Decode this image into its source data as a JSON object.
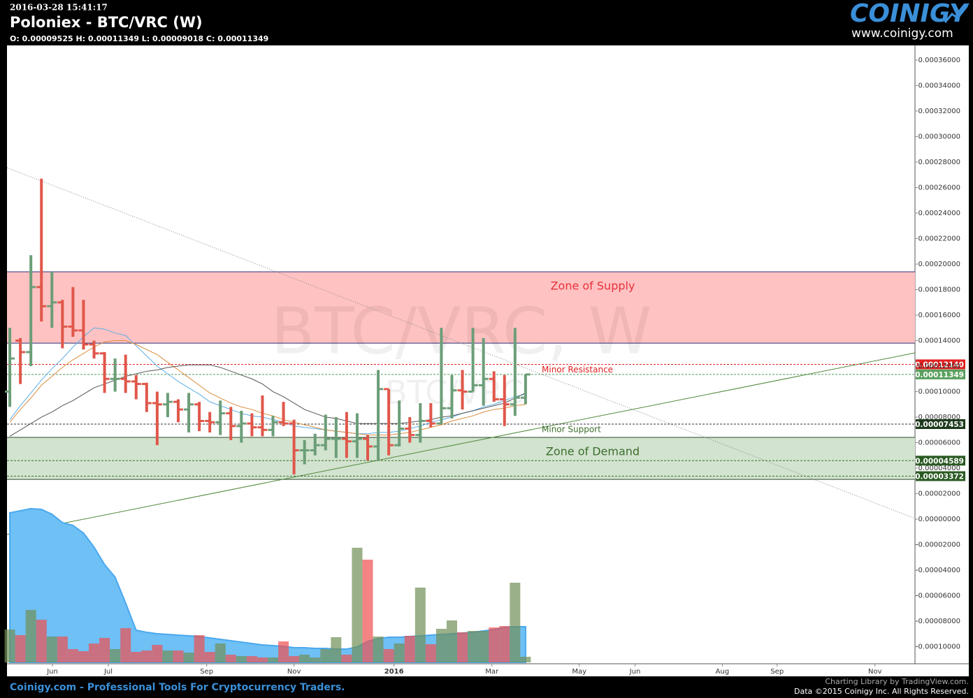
{
  "header": {
    "timestamp": "2016-03-28 15:41:17",
    "title": "Poloniex - BTC/VRC (W)",
    "ohlc_line": "O: 0.00009525 H: 0.00011349 L: 0.00009018 C: 0.00011349",
    "logo": "COINIGY",
    "logo_url": "www.coinigy.com"
  },
  "footer": {
    "tagline": "Coinigy.com - Professional Tools For Cryptocurrency Traders.",
    "credit": "Charting Library by TradingView.com.",
    "copyright": "Data ©2015 Coinigy Inc. All Rights Reserved."
  },
  "chart_data": {
    "type": "ohlc",
    "watermark": [
      "BTC/VRC, W",
      "BTC/VRC"
    ],
    "ylim": [
      -0.0001134,
      0.0003715
    ],
    "yticks": [
      {
        "value": 0.00036,
        "label": "0.00036000"
      },
      {
        "value": 0.00034,
        "label": "0.00034000"
      },
      {
        "value": 0.00032,
        "label": "0.00032000"
      },
      {
        "value": 0.0003,
        "label": "0.00030000"
      },
      {
        "value": 0.00028,
        "label": "0.00028000"
      },
      {
        "value": 0.00026,
        "label": "0.00026000"
      },
      {
        "value": 0.00024,
        "label": "0.00024000"
      },
      {
        "value": 0.00022,
        "label": "0.00022000"
      },
      {
        "value": 0.0002,
        "label": "0.00020000"
      },
      {
        "value": 0.00018,
        "label": "0.00018000"
      },
      {
        "value": 0.00016,
        "label": "0.00016000"
      },
      {
        "value": 0.00014,
        "label": "0.00014000"
      },
      {
        "value": 0.00012,
        "label": "0.00012000"
      },
      {
        "value": 0.0001,
        "label": "0.00010000"
      },
      {
        "value": 8e-05,
        "label": "0.00008000"
      },
      {
        "value": 6e-05,
        "label": "0.00006000"
      },
      {
        "value": 4e-05,
        "label": "0.00004000"
      },
      {
        "value": 2e-05,
        "label": "0.00002000"
      },
      {
        "value": 0,
        "label": "0.00000000"
      },
      {
        "value": -2e-05,
        "label": "-0.00002000"
      },
      {
        "value": -4e-05,
        "label": "-0.00004000"
      },
      {
        "value": -6e-05,
        "label": "-0.00006000"
      },
      {
        "value": -8e-05,
        "label": "-0.00008000"
      },
      {
        "value": -0.0001,
        "label": "-0.00010000"
      }
    ],
    "xlim": [
      -0.27,
      86.0
    ],
    "xticks": [
      {
        "value": 4.05,
        "label": "Jun"
      },
      {
        "value": 9.36,
        "label": "Jul"
      },
      {
        "value": 18.7,
        "label": "Sep"
      },
      {
        "value": 27.0,
        "label": "Nov"
      },
      {
        "value": 36.5,
        "label": "2016"
      },
      {
        "value": 45.8,
        "label": "Mar"
      },
      {
        "value": 54.1,
        "label": "May"
      },
      {
        "value": 59.4,
        "label": "Jun"
      },
      {
        "value": 67.7,
        "label": "Aug"
      },
      {
        "value": 72.9,
        "label": "Sep"
      },
      {
        "value": 82.2,
        "label": "Nov"
      }
    ],
    "up_color": "#6b9e78",
    "down_color": "#e0574a",
    "ohlc": {
      "open": [
        0.0001,
        0.00014,
        0.000131,
        0.000182,
        0.000167,
        0.00017,
        0.000151,
        0.000148,
        0.000137,
        0.00013,
        0.00011,
        0.00011,
        0.000108,
        0.000106,
        9.1e-05,
        9e-05,
        9.2e-05,
        8.6e-05,
        9e-05,
        7.7e-05,
        7.6e-05,
        8.3e-05,
        7.3e-05,
        7.5e-05,
        7.2e-05,
        7e-05,
        7.6e-05,
        7.5e-05,
        5.4e-05,
        5.4e-05,
        5.8e-05,
        6.3e-05,
        6.3e-05,
        6.1e-05,
        6.3e-05,
        5.7e-05,
        0.000102,
        5.8e-05,
        7.1e-05,
        6.6e-05,
        7.7e-05,
        7.5e-05,
        8.7e-05,
        0.000101,
        0.0001,
        0.000105,
        0.00011,
        9.4e-05,
        9e-05,
        9.525e-05
      ],
      "high": [
        0.00015,
        0.000142,
        0.000207,
        0.000267,
        0.000194,
        0.000172,
        0.000182,
        0.000172,
        0.00014,
        0.000131,
        0.000126,
        0.000129,
        0.000113,
        0.000107,
        0.0001,
        9.9e-05,
        9.4e-05,
        9.9e-05,
        9.2e-05,
        8.4e-05,
        9.3e-05,
        8.8e-05,
        8.5e-05,
        8.3e-05,
        9.7e-05,
        8.1e-05,
        9.2e-05,
        7.8e-05,
        6.2e-05,
        6.7e-05,
        8.2e-05,
        8e-05,
        8.4e-05,
        8.3e-05,
        6.6e-05,
        0.000117,
        0.000102,
        9.3e-05,
        8e-05,
        9.1e-05,
        9.1e-05,
        0.00015,
        0.000113,
        0.000117,
        0.00015,
        0.000142,
        0.000116,
        0.000113,
        0.00015,
        0.00011349
      ],
      "low": [
        8.8e-05,
        0.000106,
        0.00012,
        0.000155,
        0.00015,
        0.000134,
        0.000143,
        0.000133,
        0.000126,
        9.9e-05,
        0.0001,
        9.9e-05,
        9.4e-05,
        8.4e-05,
        5.8e-05,
        8e-05,
        7.6e-05,
        6.8e-05,
        6.9e-05,
        6.8e-05,
        6.6e-05,
        6.2e-05,
        6e-05,
        6.5e-05,
        6.5e-05,
        6.5e-05,
        7.3e-05,
        3.5e-05,
        4.3e-05,
        5e-05,
        5.4e-05,
        4.8e-05,
        4.8e-05,
        4.8e-05,
        4.6e-05,
        4.6e-05,
        5e-05,
        5.7e-05,
        6e-05,
        6e-05,
        7.2e-05,
        7.5e-05,
        7.9e-05,
        8.6e-05,
        0.0001,
        8.9e-05,
        9.2e-05,
        7.3e-05,
        8.1e-05,
        9.018e-05
      ],
      "close": [
        0.000126,
        0.000131,
        0.000182,
        0.000167,
        0.00017,
        0.000151,
        0.000148,
        0.000137,
        0.00013,
        0.00011,
        0.00011,
        0.000108,
        0.000106,
        9.1e-05,
        9e-05,
        9.2e-05,
        8.6e-05,
        9e-05,
        7.7e-05,
        7.6e-05,
        8.3e-05,
        7.3e-05,
        7.5e-05,
        7.2e-05,
        7e-05,
        7.6e-05,
        7.5e-05,
        5.4e-05,
        5.4e-05,
        5.8e-05,
        6.3e-05,
        6.3e-05,
        6.1e-05,
        6.3e-05,
        5.7e-05,
        0.000102,
        5.8e-05,
        7.1e-05,
        6.6e-05,
        7.7e-05,
        7.5e-05,
        8.7e-05,
        0.000101,
        0.0001,
        0.000105,
        0.00011,
        9.4e-05,
        9e-05,
        9.525e-05,
        0.00011349
      ]
    },
    "moving_averages": [
      {
        "color": "#5aaee8",
        "values": [
          7.8e-05,
          8.9e-05,
          9.9e-05,
          0.000109,
          0.000118,
          0.000126,
          0.000135,
          0.000143,
          0.00015,
          0.000149,
          0.000146,
          0.000144,
          0.000136,
          0.000128,
          0.00012,
          0.000114,
          0.000108,
          0.000103,
          9.8e-05,
          9.2e-05,
          8.9e-05,
          8.6e-05,
          8.3e-05,
          8.1e-05,
          8e-05,
          7.8e-05,
          7.6e-05,
          7.3e-05,
          7.2e-05,
          7.1e-05,
          7e-05,
          6.9e-05,
          6.8e-05,
          6.7e-05,
          6.7e-05,
          6.8e-05,
          6.8e-05,
          6.9e-05,
          7.1e-05,
          7.3e-05,
          7.6e-05,
          7.8e-05,
          8e-05,
          8.3e-05,
          8.5e-05,
          8.8e-05,
          9e-05,
          9.3e-05,
          9.6e-05,
          9.8e-05
        ]
      },
      {
        "color": "#d98c3c",
        "values": [
          7.6e-05,
          8.6e-05,
          9.5e-05,
          0.000105,
          0.000112,
          0.000119,
          0.000125,
          0.00013,
          0.000135,
          0.000139,
          0.00014,
          0.00014,
          0.000137,
          0.000133,
          0.000129,
          0.000123,
          0.000117,
          0.000111,
          0.000105,
          9.9e-05,
          9.5e-05,
          9.1e-05,
          8.8e-05,
          8.6e-05,
          8.3e-05,
          8.1e-05,
          7.8e-05,
          7.6e-05,
          7.4e-05,
          7.2e-05,
          7e-05,
          6.9e-05,
          6.8e-05,
          6.7e-05,
          6.6e-05,
          6.6e-05,
          6.6e-05,
          6.7e-05,
          6.8e-05,
          7e-05,
          7.2e-05,
          7.4e-05,
          7.7e-05,
          7.9e-05,
          8.1e-05,
          8.4e-05,
          8.6e-05,
          8.7e-05,
          8.9e-05,
          9e-05
        ]
      },
      {
        "color": "#555555",
        "values": [
          6.5e-05,
          7e-05,
          7.5e-05,
          8e-05,
          8.4e-05,
          8.9e-05,
          9.3e-05,
          9.8e-05,
          0.000103,
          0.000106,
          0.000109,
          0.000112,
          0.000114,
          0.000116,
          0.000117,
          0.000119,
          0.00012,
          0.000121,
          0.000121,
          0.000121,
          0.000119,
          0.000116,
          0.000113,
          0.00011,
          0.000106,
          0.0001,
          9.6e-05,
          9.1e-05,
          8.6e-05,
          8.3e-05,
          8e-05,
          7.9e-05,
          7.7e-05,
          7.5e-05,
          7.5e-05,
          7.5e-05,
          7.5e-05,
          7.5e-05,
          7.6e-05,
          7.7e-05,
          7.8e-05,
          8e-05,
          8.1e-05,
          8.3e-05,
          8.5e-05,
          8.7e-05,
          8.9e-05,
          9.1e-05,
          9.5e-05,
          9.9e-05
        ]
      }
    ],
    "volume": {
      "ylim": [
        0,
        176
      ],
      "area_color": "#6ec0f5",
      "values": [
        47,
        39,
        75,
        61,
        37,
        37,
        19,
        16,
        27,
        35,
        19,
        49,
        15,
        17,
        25,
        17,
        17,
        14,
        39,
        15,
        27,
        11,
        9,
        9,
        7,
        7,
        30,
        9,
        11,
        7,
        19,
        36,
        11,
        164,
        147,
        37,
        19,
        27,
        38,
        107,
        26,
        48,
        60,
        43,
        45,
        45,
        50,
        52,
        114,
        8
      ],
      "ma": [
        214,
        217,
        220,
        219,
        212,
        200,
        196,
        185,
        165,
        140,
        122,
        85,
        46,
        43,
        41,
        40,
        39,
        38,
        37,
        35,
        33,
        31,
        29,
        27,
        25,
        24,
        23,
        21,
        21,
        20,
        20,
        19,
        19,
        22,
        30,
        34,
        36,
        36,
        37,
        38,
        39,
        40,
        41,
        42,
        43,
        45,
        47,
        50,
        51,
        51
      ]
    },
    "zones": [
      {
        "label": "Zone of Supply",
        "from": 0.000138,
        "to": 0.000194,
        "color": "#ffc2c2",
        "border": "#2a2f7a",
        "text_color": "#e8303a"
      },
      {
        "label": "Zone of Demand",
        "from": 3.12e-05,
        "to": 6.41e-05,
        "color": "#d2e3cf",
        "border": "#2a4a2a",
        "text_color": "#3b6e2c"
      }
    ],
    "levels": [
      {
        "label": "Minor Resistance",
        "value": 0.0001214,
        "price_label": "0.00012140",
        "color": "#e02020",
        "box_color": "#e02020"
      },
      {
        "value": 0.00011349,
        "price_label": "0.00011349",
        "color": "#4a9a5a",
        "box_color": "#5aa05e"
      },
      {
        "label": "Minor Support",
        "value": 7.453e-05,
        "price_label": "0.00007453",
        "color": "#333333",
        "text_color": "#3b6e2c",
        "box_color": "#1e3a1e"
      },
      {
        "value": 4.589e-05,
        "price_label": "0.00004589",
        "color": "#3b6e2c",
        "box_color": "#2a5a22"
      },
      {
        "value": 3.372e-05,
        "price_label": "0.00003372",
        "color": "#3b6e2c",
        "box_color": "#2a5a22"
      }
    ],
    "trend_lines": [
      {
        "x": [
          -0.27,
          86.0
        ],
        "y": [
          0.0002756,
          5.5e-07
        ],
        "color": "#888888",
        "dash": "1,2"
      },
      {
        "x": [
          -0.27,
          86.0
        ],
        "y": [
          -1.205e-05,
          0.0001304
        ],
        "color": "#4f8a3a",
        "dash": "none"
      }
    ]
  }
}
